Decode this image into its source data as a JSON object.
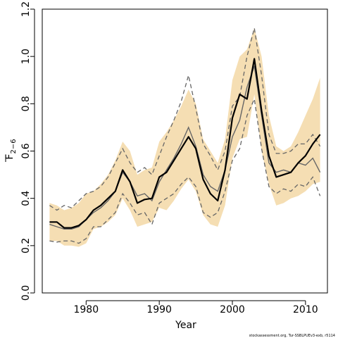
{
  "chart_data": {
    "type": "line",
    "title": "",
    "xlabel": "Year",
    "ylabel_main": "F",
    "ylabel_sub": "2−6",
    "xlim": [
      1974,
      2013
    ],
    "ylim": [
      0,
      1.2
    ],
    "xticks": [
      1980,
      1990,
      2000,
      2010
    ],
    "yticks": [
      "0.0",
      "0.2",
      "0.4",
      "0.6",
      "0.8",
      "1.0",
      "1.2"
    ],
    "grid": false,
    "colors": {
      "band": "#f5deb3",
      "estimate": "#000000",
      "previous": "#666666"
    },
    "x": [
      1975,
      1976,
      1977,
      1978,
      1979,
      1980,
      1981,
      1982,
      1983,
      1984,
      1985,
      1986,
      1987,
      1988,
      1989,
      1990,
      1991,
      1992,
      1993,
      1994,
      1995,
      1996,
      1997,
      1998,
      1999,
      2000,
      2001,
      2002,
      2003,
      2004,
      2005,
      2006,
      2007,
      2008,
      2009,
      2010,
      2011,
      2012
    ],
    "series": [
      {
        "role": "estimate",
        "style": "solid-thick",
        "values": [
          0.3,
          0.3,
          0.275,
          0.275,
          0.285,
          0.31,
          0.35,
          0.37,
          0.4,
          0.43,
          0.52,
          0.47,
          0.38,
          0.395,
          0.4,
          0.49,
          0.51,
          0.56,
          0.61,
          0.66,
          0.61,
          0.48,
          0.42,
          0.39,
          0.52,
          0.74,
          0.84,
          0.82,
          0.99,
          0.77,
          0.58,
          0.49,
          0.5,
          0.51,
          0.55,
          0.58,
          0.63,
          0.67
        ]
      },
      {
        "role": "band_upper",
        "style": "fill",
        "values": [
          0.38,
          0.37,
          0.35,
          0.36,
          0.38,
          0.42,
          0.43,
          0.46,
          0.5,
          0.56,
          0.64,
          0.6,
          0.5,
          0.52,
          0.53,
          0.64,
          0.68,
          0.73,
          0.79,
          0.86,
          0.8,
          0.65,
          0.6,
          0.55,
          0.65,
          0.9,
          1.0,
          1.03,
          1.12,
          1.0,
          0.75,
          0.62,
          0.6,
          0.62,
          0.68,
          0.75,
          0.82,
          0.91
        ]
      },
      {
        "role": "band_lower",
        "style": "fill",
        "values": [
          0.22,
          0.22,
          0.2,
          0.2,
          0.195,
          0.21,
          0.27,
          0.28,
          0.3,
          0.33,
          0.4,
          0.35,
          0.28,
          0.29,
          0.3,
          0.36,
          0.35,
          0.39,
          0.44,
          0.48,
          0.43,
          0.33,
          0.29,
          0.28,
          0.37,
          0.57,
          0.65,
          0.66,
          0.84,
          0.6,
          0.46,
          0.37,
          0.38,
          0.4,
          0.41,
          0.43,
          0.46,
          0.47
        ]
      },
      {
        "role": "previous",
        "style": "solid-thin",
        "values": [
          0.29,
          0.28,
          0.27,
          0.27,
          0.28,
          0.31,
          0.34,
          0.36,
          0.39,
          0.43,
          0.51,
          0.47,
          0.41,
          0.42,
          0.39,
          0.47,
          0.52,
          0.57,
          0.63,
          0.7,
          0.62,
          0.5,
          0.45,
          0.43,
          0.52,
          0.66,
          0.73,
          0.87,
          0.96,
          0.75,
          0.55,
          0.51,
          0.52,
          0.51,
          0.55,
          0.54,
          0.57,
          0.51
        ]
      },
      {
        "role": "previous_upper",
        "style": "dashed",
        "values": [
          0.37,
          0.35,
          0.37,
          0.36,
          0.39,
          0.42,
          0.43,
          0.45,
          0.49,
          0.55,
          0.61,
          0.55,
          0.51,
          0.53,
          0.5,
          0.58,
          0.66,
          0.73,
          0.81,
          0.92,
          0.78,
          0.63,
          0.58,
          0.52,
          0.6,
          0.79,
          0.83,
          1.0,
          1.12,
          0.92,
          0.67,
          0.59,
          0.59,
          0.6,
          0.63,
          0.63,
          0.67,
          0.62
        ]
      },
      {
        "role": "previous_lower",
        "style": "dashed",
        "values": [
          0.22,
          0.215,
          0.22,
          0.22,
          0.21,
          0.23,
          0.28,
          0.28,
          0.31,
          0.34,
          0.42,
          0.38,
          0.33,
          0.34,
          0.29,
          0.38,
          0.4,
          0.42,
          0.46,
          0.49,
          0.45,
          0.34,
          0.32,
          0.34,
          0.43,
          0.56,
          0.61,
          0.75,
          0.82,
          0.61,
          0.45,
          0.42,
          0.44,
          0.43,
          0.46,
          0.45,
          0.49,
          0.41
        ]
      }
    ]
  },
  "footnote": "stockassessment.org, Tur-SSBLPUEv3-exb, r5114"
}
